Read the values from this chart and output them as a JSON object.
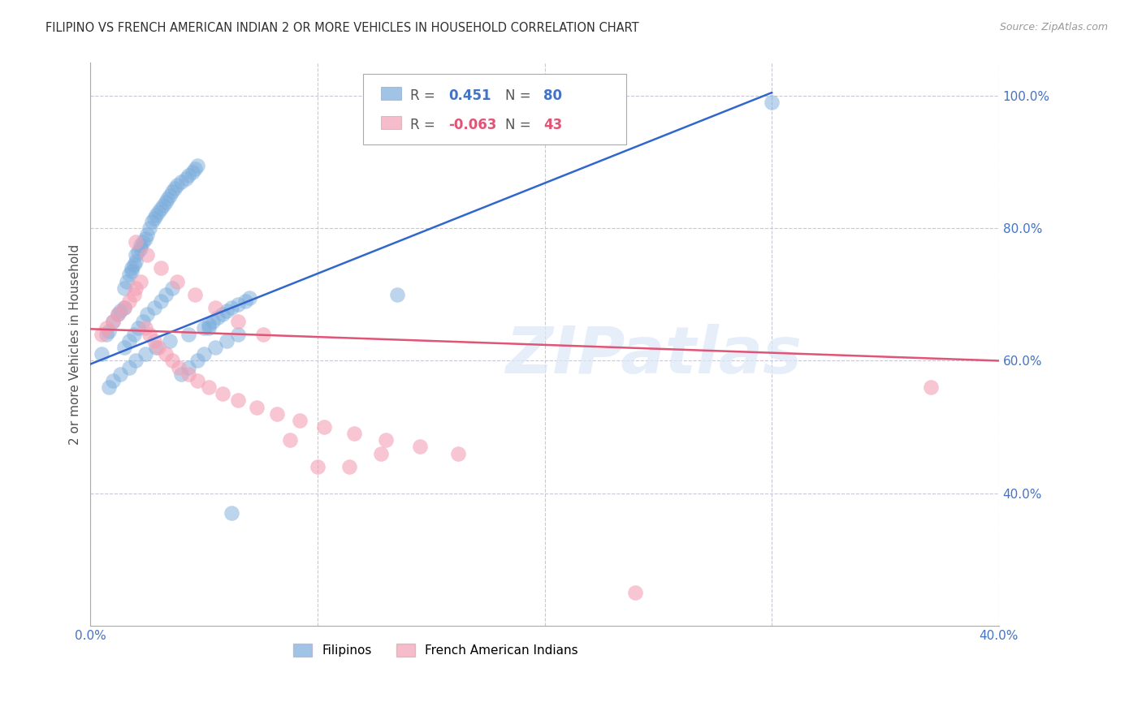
{
  "title": "FILIPINO VS FRENCH AMERICAN INDIAN 2 OR MORE VEHICLES IN HOUSEHOLD CORRELATION CHART",
  "source": "Source: ZipAtlas.com",
  "ylabel": "2 or more Vehicles in Household",
  "xlim": [
    0.0,
    0.4
  ],
  "ylim": [
    0.2,
    1.05
  ],
  "yticks": [
    0.4,
    0.6,
    0.8,
    1.0
  ],
  "ytick_labels": [
    "40.0%",
    "60.0%",
    "80.0%",
    "100.0%"
  ],
  "xticks": [
    0.0,
    0.1,
    0.2,
    0.3,
    0.4
  ],
  "xtick_labels": [
    "0.0%",
    "",
    "",
    "",
    "40.0%"
  ],
  "blue_R": 0.451,
  "blue_N": 80,
  "pink_R": -0.063,
  "pink_N": 43,
  "blue_color": "#7aacdc",
  "pink_color": "#f4a0b5",
  "blue_line_color": "#3366cc",
  "pink_line_color": "#e05575",
  "watermark": "ZIPatlas",
  "background_color": "#ffffff",
  "grid_color": "#c8c8d8",
  "title_color": "#303030",
  "axis_label_color": "#505050",
  "tick_color": "#4472c4",
  "blue_scatter_x": [
    0.005,
    0.007,
    0.008,
    0.01,
    0.012,
    0.013,
    0.015,
    0.015,
    0.016,
    0.017,
    0.018,
    0.018,
    0.019,
    0.02,
    0.02,
    0.021,
    0.022,
    0.022,
    0.023,
    0.024,
    0.025,
    0.026,
    0.027,
    0.028,
    0.029,
    0.03,
    0.031,
    0.032,
    0.033,
    0.034,
    0.035,
    0.036,
    0.037,
    0.038,
    0.04,
    0.042,
    0.043,
    0.045,
    0.046,
    0.047,
    0.05,
    0.052,
    0.054,
    0.056,
    0.058,
    0.06,
    0.062,
    0.065,
    0.068,
    0.07,
    0.015,
    0.017,
    0.019,
    0.021,
    0.023,
    0.025,
    0.028,
    0.031,
    0.033,
    0.036,
    0.04,
    0.043,
    0.047,
    0.05,
    0.055,
    0.06,
    0.065,
    0.008,
    0.01,
    0.013,
    0.017,
    0.02,
    0.024,
    0.029,
    0.035,
    0.043,
    0.052,
    0.062,
    0.135,
    0.3
  ],
  "blue_scatter_y": [
    0.61,
    0.64,
    0.645,
    0.66,
    0.67,
    0.675,
    0.68,
    0.71,
    0.72,
    0.73,
    0.735,
    0.74,
    0.745,
    0.75,
    0.76,
    0.765,
    0.77,
    0.775,
    0.78,
    0.785,
    0.79,
    0.8,
    0.81,
    0.815,
    0.82,
    0.825,
    0.83,
    0.835,
    0.84,
    0.845,
    0.85,
    0.855,
    0.86,
    0.865,
    0.87,
    0.875,
    0.88,
    0.885,
    0.89,
    0.895,
    0.65,
    0.655,
    0.66,
    0.665,
    0.67,
    0.675,
    0.68,
    0.685,
    0.69,
    0.695,
    0.62,
    0.63,
    0.64,
    0.65,
    0.66,
    0.67,
    0.68,
    0.69,
    0.7,
    0.71,
    0.58,
    0.59,
    0.6,
    0.61,
    0.62,
    0.63,
    0.64,
    0.56,
    0.57,
    0.58,
    0.59,
    0.6,
    0.61,
    0.62,
    0.63,
    0.64,
    0.65,
    0.37,
    0.7,
    0.99
  ],
  "pink_scatter_x": [
    0.005,
    0.007,
    0.01,
    0.012,
    0.015,
    0.017,
    0.019,
    0.02,
    0.022,
    0.024,
    0.026,
    0.028,
    0.03,
    0.033,
    0.036,
    0.039,
    0.043,
    0.047,
    0.052,
    0.058,
    0.065,
    0.073,
    0.082,
    0.092,
    0.103,
    0.116,
    0.13,
    0.145,
    0.162,
    0.02,
    0.025,
    0.031,
    0.038,
    0.046,
    0.055,
    0.065,
    0.076,
    0.088,
    0.1,
    0.114,
    0.128,
    0.37,
    0.24
  ],
  "pink_scatter_y": [
    0.64,
    0.65,
    0.66,
    0.67,
    0.68,
    0.69,
    0.7,
    0.71,
    0.72,
    0.65,
    0.64,
    0.63,
    0.62,
    0.61,
    0.6,
    0.59,
    0.58,
    0.57,
    0.56,
    0.55,
    0.54,
    0.53,
    0.52,
    0.51,
    0.5,
    0.49,
    0.48,
    0.47,
    0.46,
    0.78,
    0.76,
    0.74,
    0.72,
    0.7,
    0.68,
    0.66,
    0.64,
    0.48,
    0.44,
    0.44,
    0.46,
    0.56,
    0.25
  ]
}
